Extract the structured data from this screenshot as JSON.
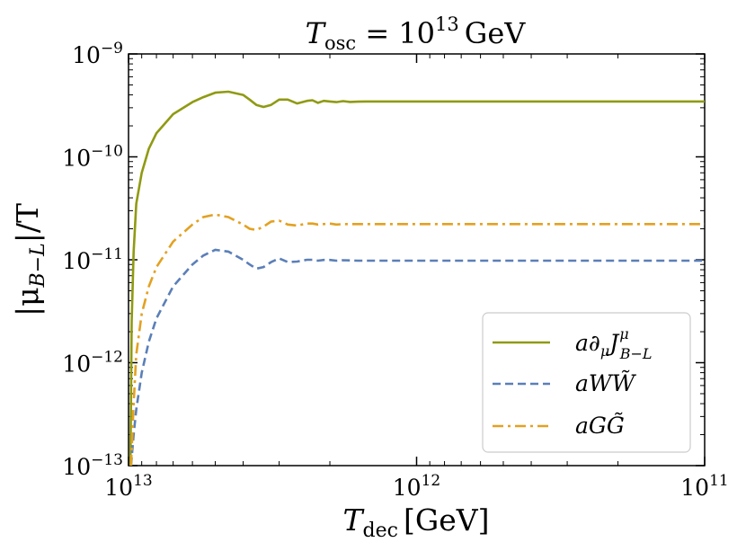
{
  "chart_data": {
    "type": "line",
    "title": {
      "lhs_var": "T",
      "lhs_sub": "osc",
      "rel": " = ",
      "base": "10",
      "exp": "13",
      "unit": "GeV"
    },
    "xlabel": {
      "var": "T",
      "sub": "dec",
      "unit": "[GeV]"
    },
    "ylabel": {
      "left": "|μ",
      "sub": "B−L",
      "right": "|/T"
    },
    "x_scale": "log",
    "y_scale": "log",
    "x_reversed": true,
    "xlim": [
      10000000000000.0,
      100000000000.0
    ],
    "ylim": [
      1e-13,
      1e-09
    ],
    "x_ticks": [
      {
        "value": 10000000000000.0,
        "base": "10",
        "exp": "13"
      },
      {
        "value": 1000000000000.0,
        "base": "10",
        "exp": "12"
      },
      {
        "value": 100000000000.0,
        "base": "10",
        "exp": "11"
      }
    ],
    "y_ticks": [
      {
        "value": 1e-13,
        "base": "10",
        "exp": "−13"
      },
      {
        "value": 1e-12,
        "base": "10",
        "exp": "−12"
      },
      {
        "value": 1e-11,
        "base": "10",
        "exp": "−11"
      },
      {
        "value": 1e-10,
        "base": "10",
        "exp": "−10"
      },
      {
        "value": 1e-09,
        "base": "10",
        "exp": "−9"
      }
    ],
    "grid": false,
    "legend_position": "lower-right",
    "series": [
      {
        "name": "a∂μJ^μ_B−L",
        "legend": {
          "a": "a∂",
          "sub1": "μ",
          "J": "J",
          "sup": "μ",
          "sub2": "B−L"
        },
        "color": "#8f9a12",
        "dash": "solid",
        "x": [
          9850000000000.0,
          9750000000000.0,
          9600000000000.0,
          9400000000000.0,
          9000000000000.0,
          8500000000000.0,
          8000000000000.0,
          7000000000000.0,
          6000000000000.0,
          5500000000000.0,
          5000000000000.0,
          4500000000000.0,
          4000000000000.0,
          3800000000000.0,
          3600000000000.0,
          3400000000000.0,
          3200000000000.0,
          3000000000000.0,
          2800000000000.0,
          2600000000000.0,
          2400000000000.0,
          2300000000000.0,
          2200000000000.0,
          2100000000000.0,
          2000000000000.0,
          1900000000000.0,
          1800000000000.0,
          1700000000000.0,
          1600000000000.0,
          1500000000000.0,
          1300000000000.0,
          1100000000000.0,
          1000000000000.0,
          500000000000.0,
          200000000000.0,
          100000000000.0
        ],
        "y": [
          1e-13,
          2.5e-12,
          1.2e-11,
          3.5e-11,
          7e-11,
          1.2e-10,
          1.7e-10,
          2.6e-10,
          3.4e-10,
          3.8e-10,
          4.2e-10,
          4.3e-10,
          4e-10,
          3.6e-10,
          3.2e-10,
          3.05e-10,
          3.2e-10,
          3.6e-10,
          3.6e-10,
          3.3e-10,
          3.5e-10,
          3.55e-10,
          3.35e-10,
          3.5e-10,
          3.45e-10,
          3.4e-10,
          3.48e-10,
          3.42e-10,
          3.44e-10,
          3.45e-10,
          3.45e-10,
          3.45e-10,
          3.45e-10,
          3.45e-10,
          3.45e-10,
          3.45e-10
        ]
      },
      {
        "name": "aWW̃",
        "legend": {
          "text": "aWW̃"
        },
        "color": "#5b7fb8",
        "dash": "dashed",
        "x": [
          9800000000000.0,
          9600000000000.0,
          9400000000000.0,
          9000000000000.0,
          8500000000000.0,
          8000000000000.0,
          7000000000000.0,
          6000000000000.0,
          5500000000000.0,
          5000000000000.0,
          4500000000000.0,
          4000000000000.0,
          3800000000000.0,
          3600000000000.0,
          3400000000000.0,
          3200000000000.0,
          3000000000000.0,
          2800000000000.0,
          2600000000000.0,
          2400000000000.0,
          2300000000000.0,
          2200000000000.0,
          2100000000000.0,
          2000000000000.0,
          1900000000000.0,
          1800000000000.0,
          1600000000000.0,
          1300000000000.0,
          1000000000000.0,
          500000000000.0,
          200000000000.0,
          100000000000.0
        ],
        "y": [
          1e-13,
          2e-13,
          3.5e-13,
          8e-13,
          1.6e-12,
          2.7e-12,
          5.5e-12,
          9e-12,
          1.1e-11,
          1.25e-11,
          1.2e-11,
          1e-11,
          9e-12,
          8.2e-12,
          8.5e-12,
          9.5e-12,
          1.03e-11,
          9.5e-12,
          9.6e-12,
          1e-11,
          1e-11,
          9.8e-12,
          9.95e-12,
          9.95e-12,
          9.8e-12,
          9.9e-12,
          9.8e-12,
          9.8e-12,
          9.8e-12,
          9.8e-12,
          9.8e-12,
          9.8e-12
        ]
      },
      {
        "name": "aGG̃",
        "legend": {
          "text": "aGG̃"
        },
        "color": "#e3a121",
        "dash": "dashdot",
        "x": [
          9800000000000.0,
          9600000000000.0,
          9400000000000.0,
          9000000000000.0,
          8500000000000.0,
          8000000000000.0,
          7000000000000.0,
          6000000000000.0,
          5500000000000.0,
          5000000000000.0,
          4500000000000.0,
          4000000000000.0,
          3800000000000.0,
          3600000000000.0,
          3400000000000.0,
          3200000000000.0,
          3000000000000.0,
          2800000000000.0,
          2600000000000.0,
          2400000000000.0,
          2300000000000.0,
          2200000000000.0,
          2100000000000.0,
          2000000000000.0,
          1900000000000.0,
          1800000000000.0,
          1600000000000.0,
          1300000000000.0,
          1000000000000.0,
          500000000000.0,
          200000000000.0,
          100000000000.0
        ],
        "y": [
          1e-13,
          4e-13,
          1.2e-12,
          3e-12,
          5.5e-12,
          8.5e-12,
          1.5e-11,
          2.2e-11,
          2.6e-11,
          2.75e-11,
          2.6e-11,
          2.2e-11,
          2e-11,
          1.95e-11,
          2.1e-11,
          2.35e-11,
          2.4e-11,
          2.2e-11,
          2.15e-11,
          2.25e-11,
          2.25e-11,
          2.2e-11,
          2.22e-11,
          2.25e-11,
          2.2e-11,
          2.22e-11,
          2.22e-11,
          2.22e-11,
          2.22e-11,
          2.22e-11,
          2.22e-11,
          2.22e-11
        ]
      }
    ]
  }
}
